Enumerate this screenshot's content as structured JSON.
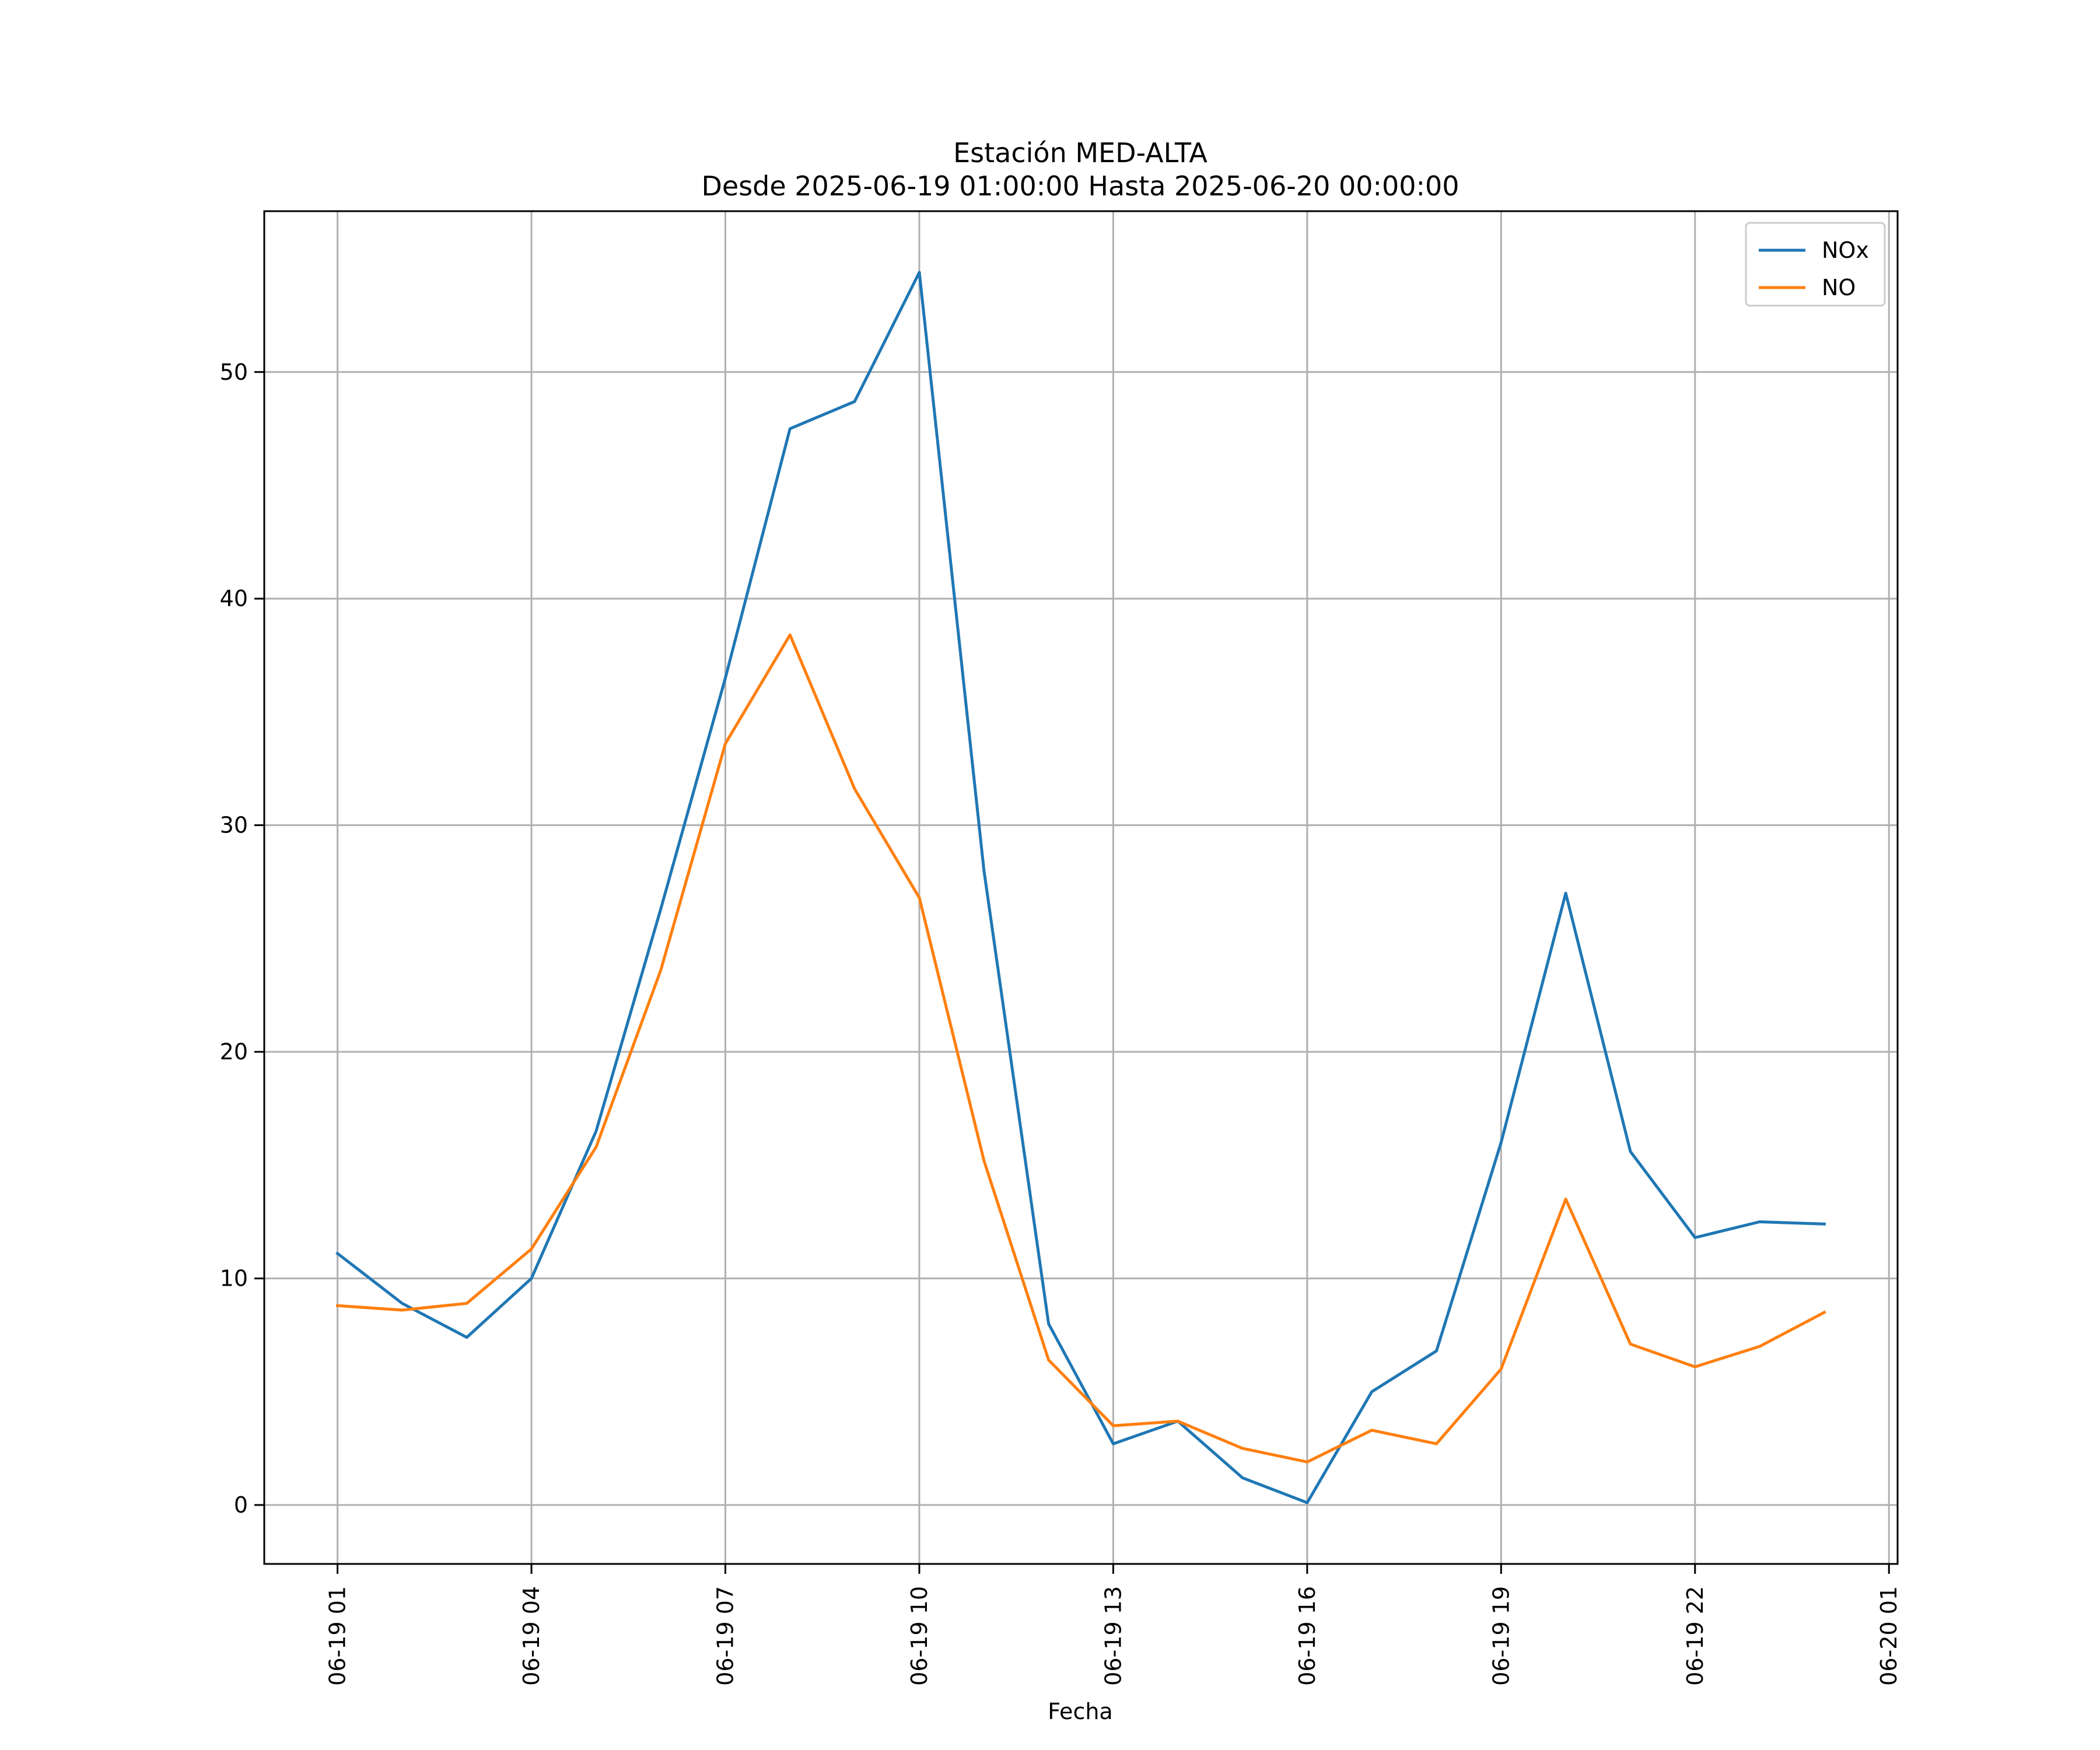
{
  "chart_data": {
    "type": "line",
    "title": "Estación MED-ALTA",
    "subtitle": "Desde 2025-06-19 01:00:00 Hasta 2025-06-20 00:00:00",
    "xlabel": "Fecha",
    "ylabel": "",
    "x": [
      "2025-06-19 01:00",
      "2025-06-19 02:00",
      "2025-06-19 03:00",
      "2025-06-19 04:00",
      "2025-06-19 05:00",
      "2025-06-19 06:00",
      "2025-06-19 07:00",
      "2025-06-19 08:00",
      "2025-06-19 09:00",
      "2025-06-19 10:00",
      "2025-06-19 11:00",
      "2025-06-19 12:00",
      "2025-06-19 13:00",
      "2025-06-19 14:00",
      "2025-06-19 15:00",
      "2025-06-19 16:00",
      "2025-06-19 17:00",
      "2025-06-19 18:00",
      "2025-06-19 19:00",
      "2025-06-19 20:00",
      "2025-06-19 21:00",
      "2025-06-19 22:00",
      "2025-06-19 23:00",
      "2025-06-20 00:00"
    ],
    "x_ticks": [
      "2025-06-19 01:00",
      "2025-06-19 04:00",
      "2025-06-19 07:00",
      "2025-06-19 10:00",
      "2025-06-19 13:00",
      "2025-06-19 16:00",
      "2025-06-19 19:00",
      "2025-06-19 22:00",
      "2025-06-20 01:00"
    ],
    "x_tick_labels": [
      "06-19 01",
      "06-19 04",
      "06-19 07",
      "06-19 10",
      "06-19 13",
      "06-19 16",
      "06-19 19",
      "06-19 22",
      "06-20 01"
    ],
    "xlim": [
      "2025-06-18 23:52",
      "2025-06-20 01:08"
    ],
    "ylim": [
      -2.6,
      57.1
    ],
    "y_ticks": [
      0,
      10,
      20,
      30,
      40,
      50
    ],
    "y_tick_labels": [
      "0",
      "10",
      "20",
      "30",
      "40",
      "50"
    ],
    "grid": true,
    "legend_position": "top-right",
    "series": [
      {
        "name": "NOx",
        "color": "#1f77b4",
        "values": [
          11.1,
          8.9,
          7.4,
          10.0,
          16.5,
          26.3,
          36.5,
          47.5,
          48.7,
          54.4,
          28.0,
          8.0,
          2.7,
          3.7,
          1.2,
          0.1,
          5.0,
          6.8,
          16.0,
          27.0,
          15.6,
          11.8,
          12.5,
          12.4
        ]
      },
      {
        "name": "NO",
        "color": "#ff7f0e",
        "values": [
          8.8,
          8.6,
          8.9,
          11.3,
          15.8,
          23.6,
          33.6,
          38.4,
          31.6,
          26.8,
          15.2,
          6.4,
          3.5,
          3.7,
          2.5,
          1.9,
          3.3,
          2.7,
          6.0,
          13.5,
          7.1,
          6.1,
          7.0,
          8.5
        ]
      }
    ]
  }
}
